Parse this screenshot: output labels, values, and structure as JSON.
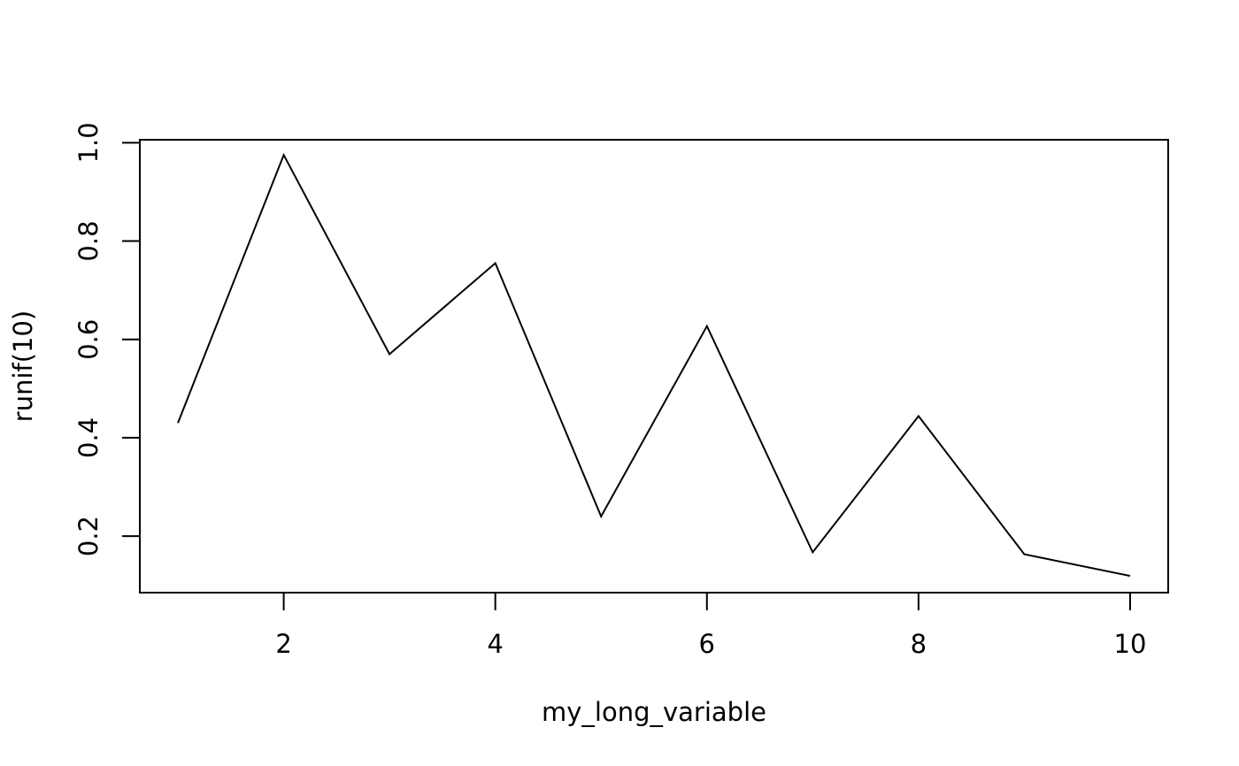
{
  "chart_data": {
    "type": "line",
    "title": "",
    "xlabel": "my_long_variable",
    "ylabel": "runif(10)",
    "xlim": [
      0.64,
      10.36
    ],
    "ylim": [
      0.085,
      1.006
    ],
    "x_ticks": [
      2,
      4,
      6,
      8,
      10
    ],
    "x_tick_labels": [
      "2",
      "4",
      "6",
      "8",
      "10"
    ],
    "y_ticks": [
      0.2,
      0.4,
      0.6,
      0.8,
      1.0
    ],
    "y_tick_labels": [
      "0.2",
      "0.4",
      "0.6",
      "0.8",
      "1.0"
    ],
    "grid": false,
    "series": [
      {
        "x": [
          1,
          2,
          3,
          4,
          5,
          6,
          7,
          8,
          9,
          10
        ],
        "values": [
          0.43,
          0.975,
          0.57,
          0.755,
          0.24,
          0.627,
          0.167,
          0.444,
          0.163,
          0.119
        ]
      }
    ],
    "colors": {
      "line": "#000000",
      "background": "#ffffff"
    }
  }
}
